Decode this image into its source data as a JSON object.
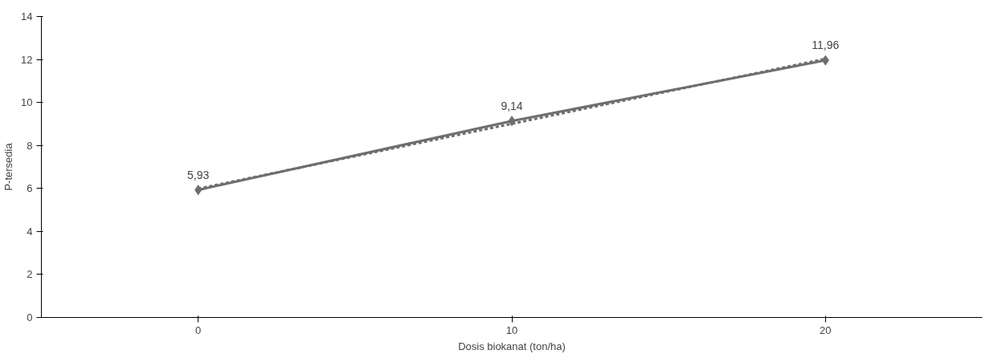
{
  "chart_data": {
    "type": "line",
    "xlabel": "Dosis biokanat (ton/ha)",
    "ylabel": "P-tersedia",
    "categories": [
      "0",
      "10",
      "20"
    ],
    "ylim": [
      0,
      14
    ],
    "yticks": [
      0,
      2,
      4,
      6,
      8,
      10,
      12,
      14
    ],
    "grid": false,
    "series": [
      {
        "color": "#6e6e6e",
        "values": [
          5.93,
          9.14,
          11.96
        ],
        "value_labels": [
          "5,93",
          "9,14",
          "11,96"
        ],
        "marker": "diamond",
        "line_style": "solid"
      },
      {
        "color": "#6e6e6e",
        "values": [
          5.99,
          9.01,
          12.03
        ],
        "marker": "none",
        "line_style": "dashed"
      }
    ]
  }
}
